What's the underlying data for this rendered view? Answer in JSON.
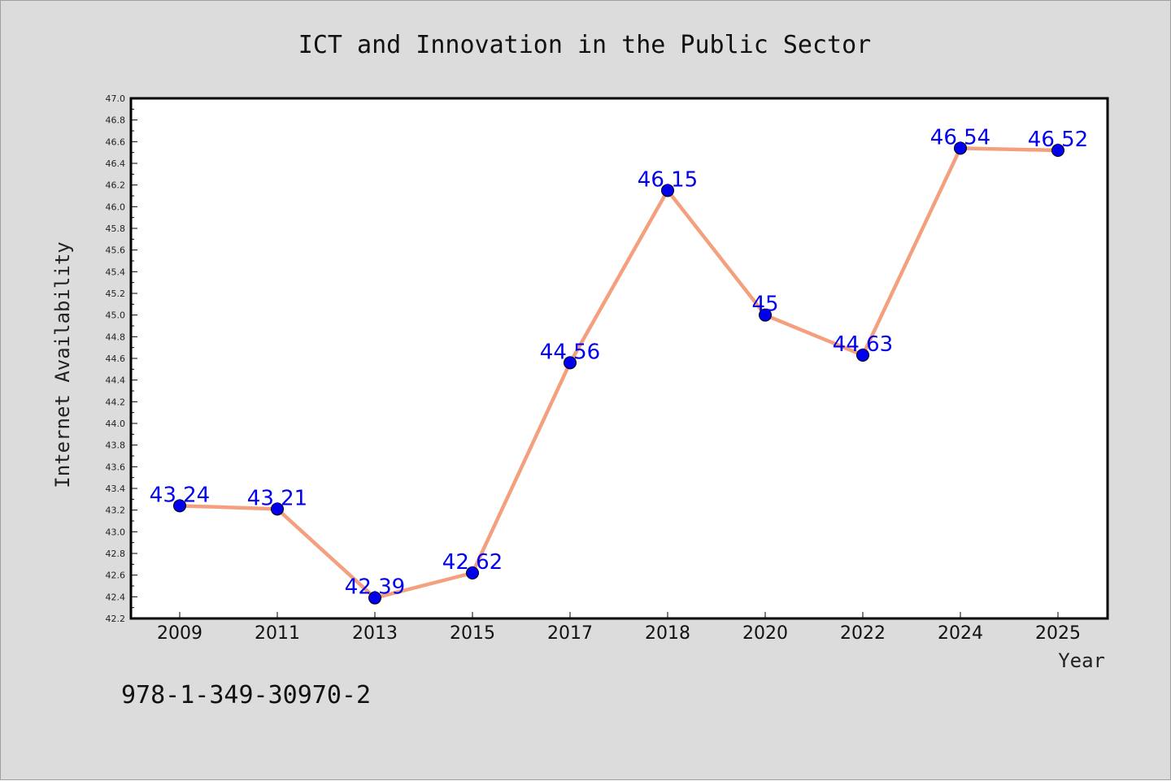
{
  "chart_data": {
    "type": "line",
    "title": "ICT and Innovation in the Public Sector",
    "xlabel": "Year",
    "ylabel": "Internet Availability",
    "categories": [
      "2009",
      "2011",
      "2013",
      "2015",
      "2017",
      "2018",
      "2020",
      "2022",
      "2024",
      "2025"
    ],
    "series": [
      {
        "values": [
          43.24,
          43.21,
          42.39,
          42.62,
          44.56,
          46.15,
          45,
          44.63,
          46.54,
          46.52
        ]
      }
    ],
    "data_labels": [
      "43.24",
      "43.21",
      "42.39",
      "42.62",
      "44.56",
      "46.15",
      "45",
      "44.63",
      "46.54",
      "46.52"
    ],
    "ylim": [
      42.2,
      47.0
    ],
    "y_tick_labels": [
      "42.2",
      "42.4",
      "42.6",
      "42.8",
      "43.0",
      "43.2",
      "43.4",
      "43.6",
      "43.8",
      "44.0",
      "44.2",
      "44.4",
      "44.6",
      "44.8",
      "45.0",
      "45.2",
      "45.4",
      "45.6",
      "45.8",
      "46.0",
      "46.2",
      "46.4",
      "46.6",
      "46.8",
      "47.0"
    ],
    "grid": false,
    "legend": "none"
  },
  "footnote": "978-1-349-30970-2",
  "colors": {
    "background": "#dcdcdc",
    "plot_background": "#ffffff",
    "line": "#f4a07e",
    "marker": "#0000ee",
    "data_label": "#0000ee"
  }
}
